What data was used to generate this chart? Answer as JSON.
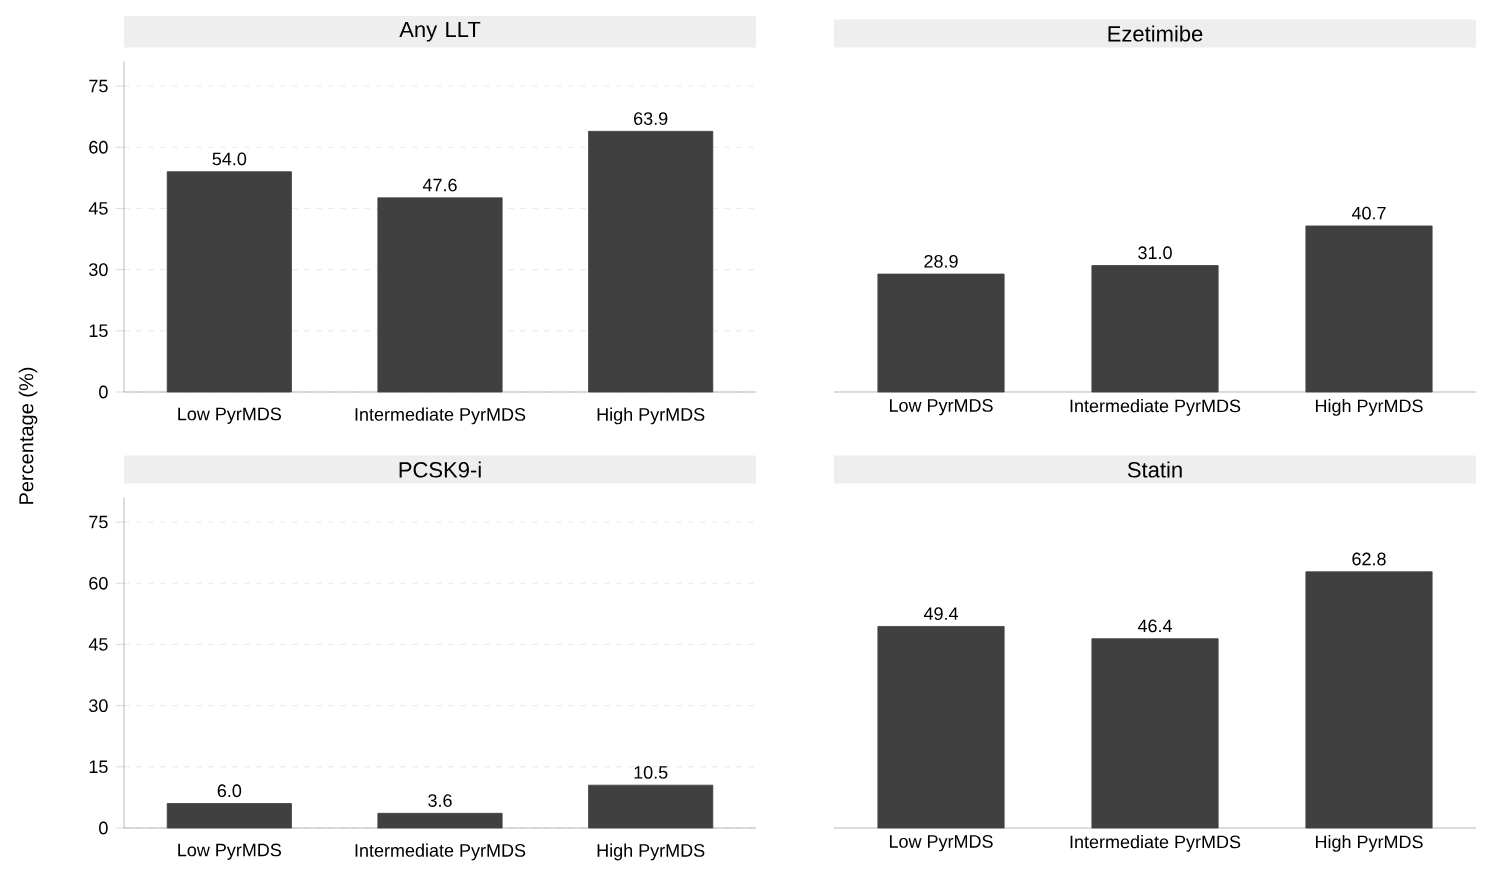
{
  "chart_data": [
    {
      "type": "bar",
      "title": "Any LLT",
      "ylabel": "Percentage (%)",
      "categories": [
        "Low PyrMDS",
        "Intermediate PyrMDS",
        "High PyrMDS"
      ],
      "values": [
        54.0,
        47.6,
        63.9
      ],
      "value_labels": [
        "54.0",
        "47.6",
        "63.9"
      ],
      "color": "#404040",
      "ylim": [
        0,
        81
      ],
      "yticks": [
        0,
        15,
        30,
        45,
        60,
        75
      ],
      "grid": "y"
    },
    {
      "type": "bar",
      "title": "Ezetimibe",
      "categories": [
        "Low PyrMDS",
        "Intermediate PyrMDS",
        "High PyrMDS"
      ],
      "values": [
        28.9,
        31.0,
        40.7
      ],
      "value_labels": [
        "28.9",
        "31.0",
        "40.7"
      ],
      "color": "#404040",
      "ylim": [
        0,
        75
      ],
      "yticks": [
        0,
        15,
        30,
        45,
        60,
        75
      ],
      "grid": "y",
      "tick_labels": "x"
    },
    {
      "type": "bar",
      "title": "PCSK9-i",
      "categories": [
        "Low PyrMDS",
        "Intermediate PyrMDS",
        "High PyrMDS"
      ],
      "values": [
        6.0,
        3.6,
        10.5
      ],
      "value_labels": [
        "6.0",
        "3.6",
        "10.5"
      ],
      "color": "#404040",
      "ylim": [
        0,
        81
      ],
      "yticks": [
        0,
        15,
        30,
        45,
        60,
        75
      ],
      "grid": "y"
    },
    {
      "type": "bar",
      "title": "Statin",
      "categories": [
        "Low PyrMDS",
        "Intermediate PyrMDS",
        "High PyrMDS"
      ],
      "values": [
        49.4,
        46.4,
        62.8
      ],
      "value_labels": [
        "49.4",
        "46.4",
        "62.8"
      ],
      "color": "#404040",
      "ylim": [
        0,
        75
      ],
      "yticks": [
        0,
        15,
        30,
        45,
        60,
        75
      ],
      "grid": "y",
      "tick_labels": "x"
    }
  ]
}
